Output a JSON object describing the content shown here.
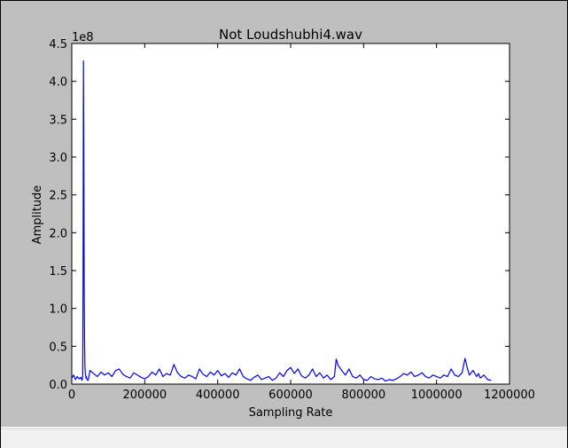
{
  "chart_data": {
    "type": "line",
    "title": "Not Loudshubhi4.wav",
    "xlabel": "Sampling Rate",
    "ylabel": "Amplitude",
    "y_offset_label": "1e8",
    "xlim": [
      0,
      1200000
    ],
    "ylim": [
      0,
      4.5
    ],
    "y_unit_multiplier": 100000000,
    "x_ticks": [
      0,
      200000,
      400000,
      600000,
      800000,
      1000000,
      1200000
    ],
    "x_tick_labels": [
      "0",
      "200000",
      "400000",
      "600000",
      "800000",
      "1000000",
      "1200000"
    ],
    "y_ticks": [
      0,
      0.5,
      1.0,
      1.5,
      2.0,
      2.5,
      3.0,
      3.5,
      4.0,
      4.5
    ],
    "y_tick_labels": [
      "0.0",
      "0.5",
      "1.0",
      "1.5",
      "2.0",
      "2.5",
      "3.0",
      "3.5",
      "4.0",
      "4.5"
    ],
    "grid": false,
    "series": [
      {
        "color": "#0000ff",
        "x": [
          0,
          5000,
          10000,
          15000,
          20000,
          25000,
          28000,
          30000,
          31000,
          32000,
          33000,
          34000,
          35000,
          36000,
          37000,
          38000,
          39000,
          40000,
          42000,
          45000,
          50000,
          60000,
          70000,
          80000,
          90000,
          100000,
          110000,
          120000,
          130000,
          140000,
          150000,
          160000,
          170000,
          180000,
          190000,
          200000,
          210000,
          220000,
          230000,
          240000,
          250000,
          260000,
          270000,
          280000,
          290000,
          300000,
          310000,
          320000,
          330000,
          340000,
          350000,
          360000,
          370000,
          380000,
          390000,
          400000,
          410000,
          420000,
          430000,
          440000,
          450000,
          460000,
          470000,
          480000,
          490000,
          500000,
          510000,
          520000,
          530000,
          540000,
          550000,
          560000,
          570000,
          580000,
          590000,
          600000,
          610000,
          620000,
          630000,
          640000,
          650000,
          660000,
          670000,
          680000,
          690000,
          700000,
          710000,
          720000,
          725000,
          730000,
          740000,
          750000,
          760000,
          770000,
          780000,
          790000,
          800000,
          810000,
          820000,
          830000,
          840000,
          850000,
          860000,
          870000,
          880000,
          890000,
          900000,
          910000,
          920000,
          930000,
          940000,
          950000,
          960000,
          970000,
          980000,
          990000,
          1000000,
          1010000,
          1020000,
          1030000,
          1040000,
          1050000,
          1060000,
          1070000,
          1078000,
          1085000,
          1090000,
          1100000,
          1110000,
          1115000,
          1120000,
          1130000,
          1140000,
          1150000
        ],
        "y": [
          0.08,
          0.12,
          0.06,
          0.1,
          0.07,
          0.09,
          0.05,
          0.1,
          1.5,
          4.27,
          3.15,
          1.3,
          0.6,
          0.25,
          0.15,
          0.12,
          0.08,
          0.1,
          0.06,
          0.05,
          0.18,
          0.14,
          0.1,
          0.16,
          0.12,
          0.15,
          0.1,
          0.18,
          0.2,
          0.13,
          0.1,
          0.08,
          0.15,
          0.12,
          0.09,
          0.07,
          0.1,
          0.16,
          0.12,
          0.2,
          0.1,
          0.14,
          0.12,
          0.26,
          0.15,
          0.1,
          0.08,
          0.12,
          0.1,
          0.07,
          0.2,
          0.13,
          0.1,
          0.16,
          0.12,
          0.18,
          0.11,
          0.14,
          0.09,
          0.15,
          0.12,
          0.2,
          0.1,
          0.07,
          0.05,
          0.09,
          0.12,
          0.06,
          0.08,
          0.1,
          0.05,
          0.08,
          0.15,
          0.1,
          0.18,
          0.22,
          0.14,
          0.2,
          0.11,
          0.08,
          0.12,
          0.2,
          0.1,
          0.15,
          0.08,
          0.12,
          0.06,
          0.1,
          0.33,
          0.25,
          0.18,
          0.12,
          0.2,
          0.1,
          0.08,
          0.12,
          0.06,
          0.05,
          0.1,
          0.07,
          0.06,
          0.08,
          0.04,
          0.06,
          0.05,
          0.07,
          0.1,
          0.14,
          0.12,
          0.16,
          0.1,
          0.12,
          0.15,
          0.1,
          0.08,
          0.12,
          0.1,
          0.08,
          0.12,
          0.1,
          0.2,
          0.12,
          0.1,
          0.15,
          0.34,
          0.2,
          0.12,
          0.18,
          0.1,
          0.14,
          0.08,
          0.12,
          0.06,
          0.05
        ]
      }
    ]
  }
}
